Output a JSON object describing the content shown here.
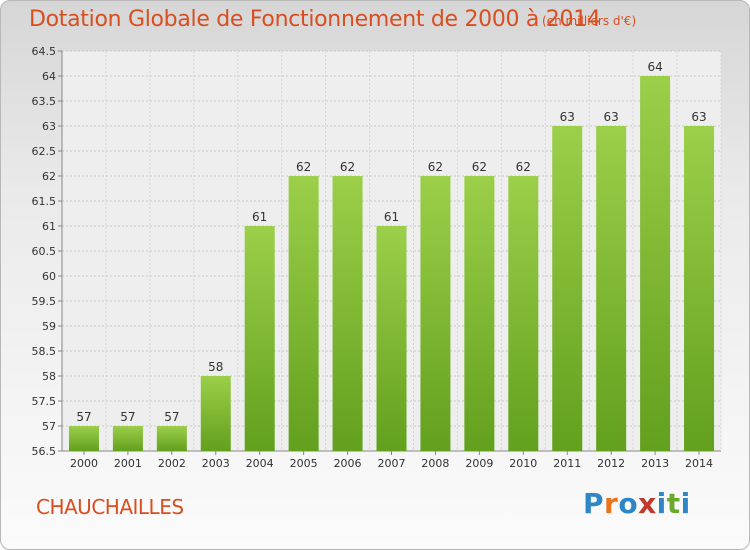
{
  "header": {
    "title": "Dotation Globale de Fonctionnement de 2000 à 2014",
    "unit": "(en milliers d'€)"
  },
  "footer": {
    "commune": "CHAUCHAILLES",
    "logo": "Proxiti"
  },
  "colors": {
    "text_accent": "#d94e1f",
    "bar_light": "#9ccf4a",
    "bar_dark": "#62a01d",
    "logo_letters": [
      "#2f86c6",
      "#e8751a",
      "#2f86c6",
      "#c0392b",
      "#2f86c6",
      "#6aa82e",
      "#2f86c6"
    ]
  },
  "chart_data": {
    "type": "bar",
    "categories": [
      "2000",
      "2001",
      "2002",
      "2003",
      "2004",
      "2005",
      "2006",
      "2007",
      "2008",
      "2009",
      "2010",
      "2011",
      "2012",
      "2013",
      "2014"
    ],
    "values": [
      57,
      57,
      57,
      58,
      61,
      62,
      62,
      61,
      62,
      62,
      62,
      63,
      63,
      64,
      63
    ],
    "data_labels": [
      "57",
      "57",
      "57",
      "58",
      "61",
      "62",
      "62",
      "61",
      "62",
      "62",
      "62",
      "63",
      "63",
      "64",
      "63"
    ],
    "ylim": [
      56.5,
      64.5
    ],
    "yticks": [
      "56.5",
      "57",
      "57.5",
      "58",
      "58.5",
      "59",
      "59.5",
      "60",
      "60.5",
      "61",
      "61.5",
      "62",
      "62.5",
      "63",
      "63.5",
      "64",
      "64.5"
    ],
    "grid": true,
    "legend": "none"
  }
}
